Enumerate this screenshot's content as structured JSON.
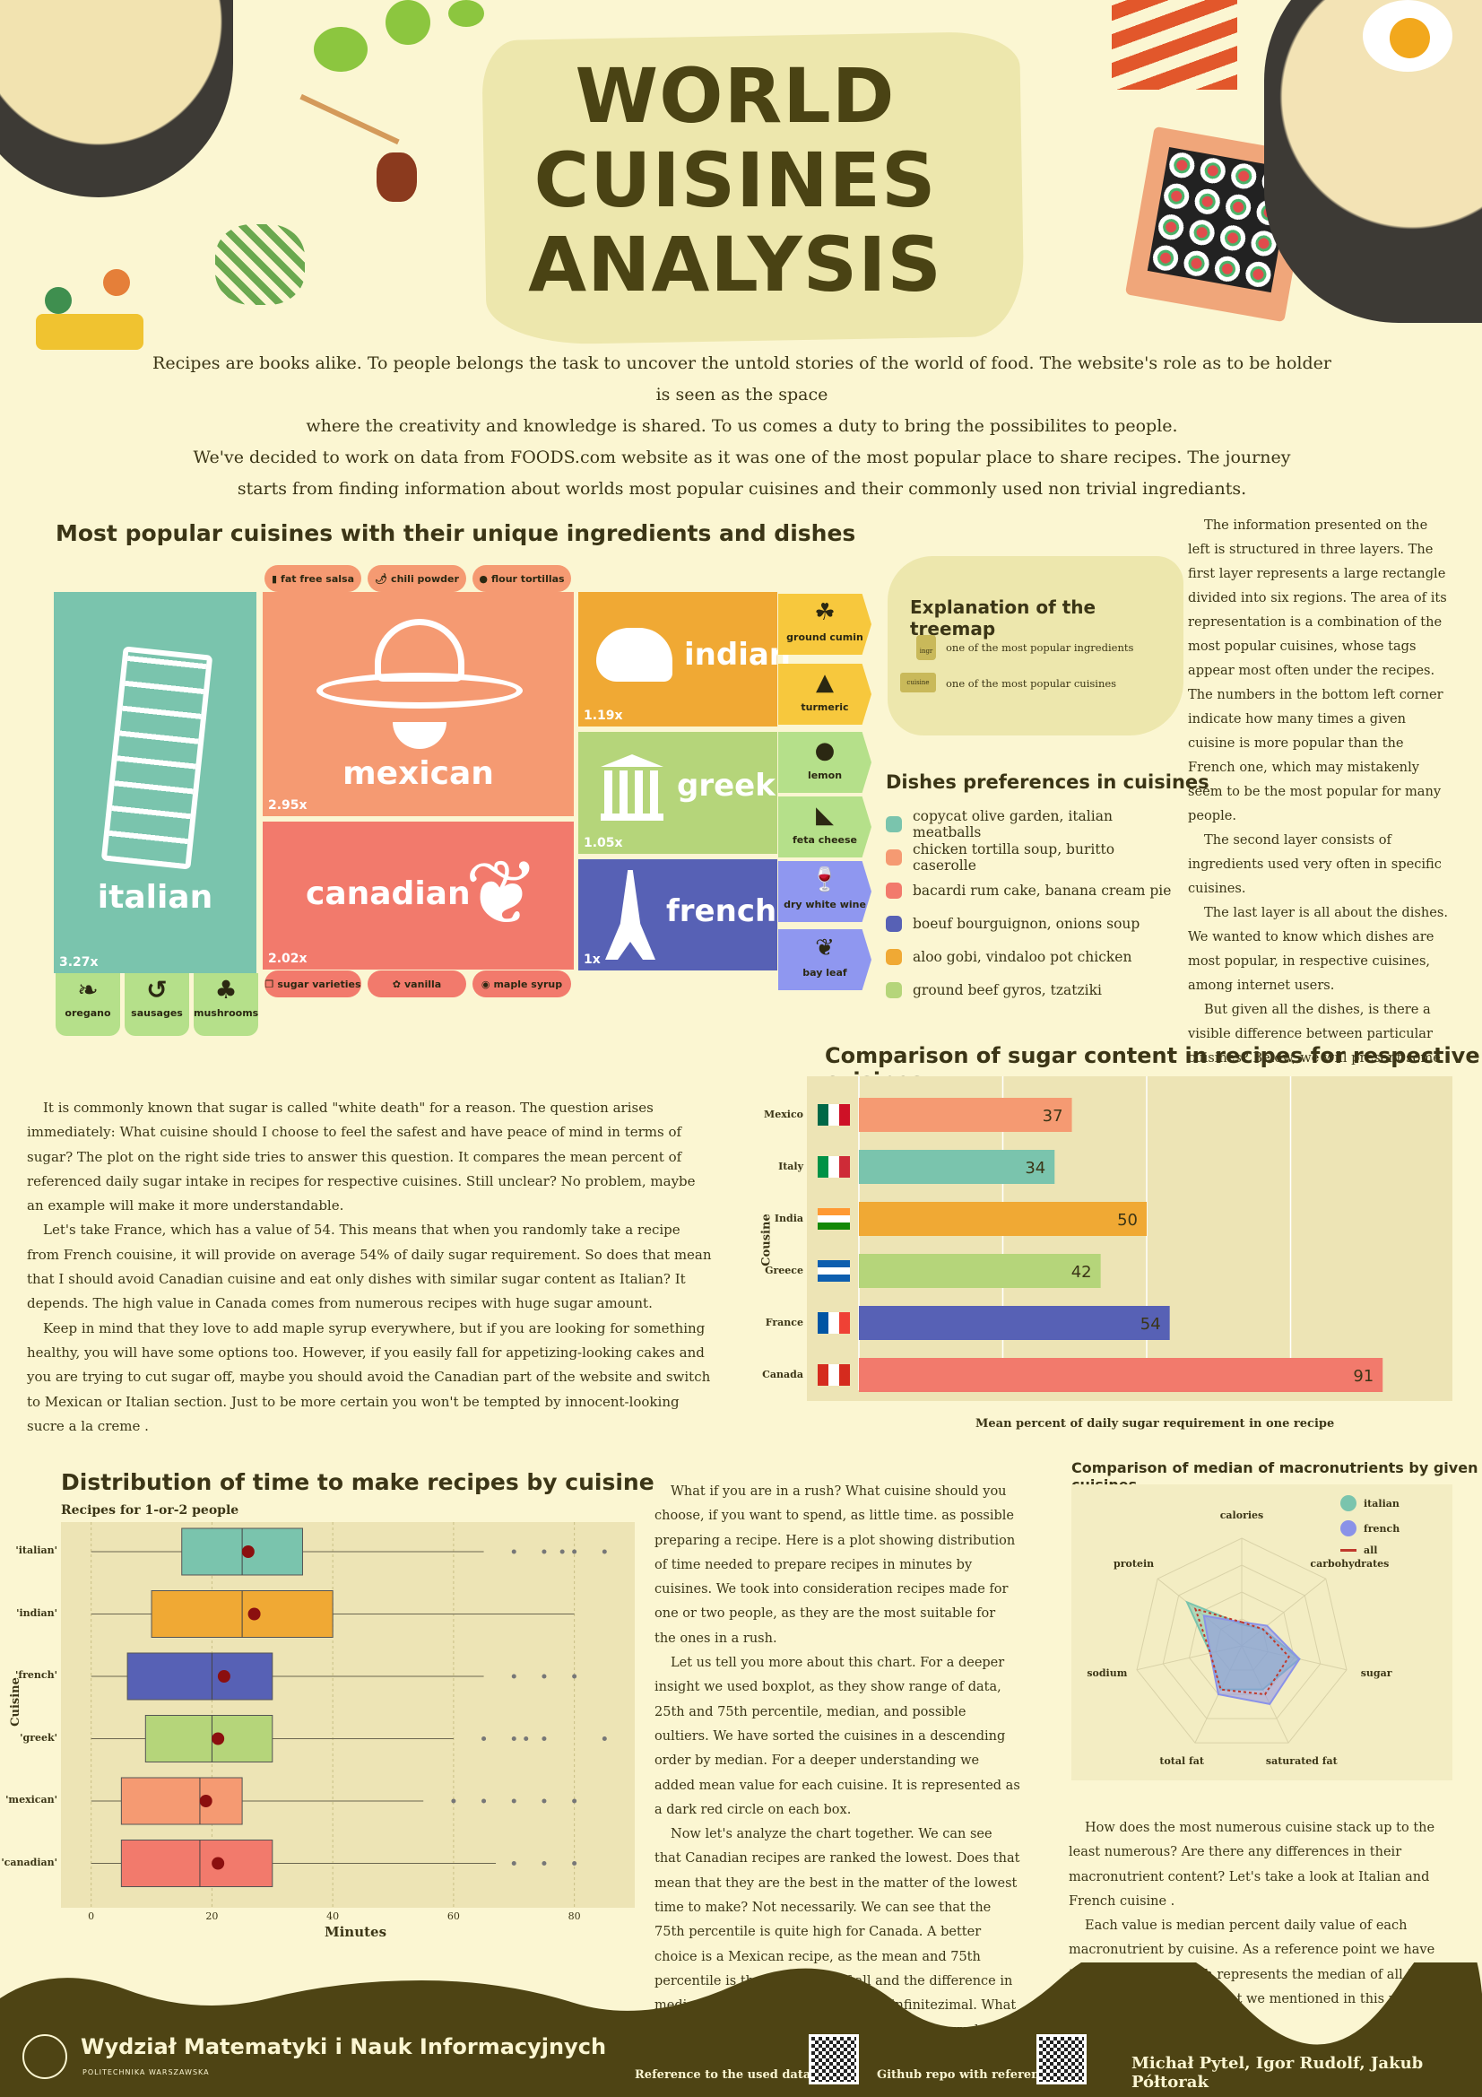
{
  "poster": {
    "title_lines": [
      "WORLD",
      "CUISINES",
      "ANALYSIS"
    ],
    "intro_lines": [
      "Recipes are books alike. To people belongs the task to uncover the untold stories of the world of food. The website's role as to be holder is seen as the space",
      "where the creativity and knowledge is shared. To us comes a duty to bring the possibilites to people.",
      "We've decided to work on data from FOODS.com website as it was one of the most popular place to share recipes. The journey",
      "starts from finding information about worlds most popular cuisines and their commonly used non trivial ingrediants."
    ]
  },
  "treemap": {
    "title": "Most popular cuisines with their unique ingredients and dishes",
    "tiles": [
      {
        "name": "italian",
        "multiplier": "3.27x",
        "color": "#7ac4ad"
      },
      {
        "name": "mexican",
        "multiplier": "2.95x",
        "color": "#f59a72"
      },
      {
        "name": "canadian",
        "multiplier": "2.02x",
        "color": "#f27a6c"
      },
      {
        "name": "indian",
        "multiplier": "1.19x",
        "color": "#f0a934"
      },
      {
        "name": "greek",
        "multiplier": "1.05x",
        "color": "#b5d57a"
      },
      {
        "name": "french",
        "multiplier": "1x",
        "color": "#5761b5"
      }
    ],
    "tags": {
      "italian": [
        "oregano",
        "sausages",
        "mushrooms"
      ],
      "mexican": [
        "fat free salsa",
        "chili powder",
        "flour tortillas"
      ],
      "canadian": [
        "sugar varieties",
        "vanilla",
        "maple syrup"
      ],
      "indian": [
        "ground cumin",
        "turmeric"
      ],
      "greek": [
        "lemon",
        "feta cheese"
      ],
      "french": [
        "dry white wine",
        "bay leaf"
      ]
    },
    "explanation": {
      "title": "Explanation of the treemap",
      "items": [
        "one of the most popular ingredients",
        "one of the most popular cuisines"
      ],
      "icon_labels": [
        "ingr",
        "cuisine"
      ]
    },
    "dishes": {
      "title": "Dishes preferences in cuisines",
      "items": [
        {
          "text": "copycat olive garden,  italian meatballs",
          "color": "#7ac4ad"
        },
        {
          "text": "chicken tortilla soup,  buritto caserolle",
          "color": "#f59a72"
        },
        {
          "text": "bacardi rum cake,  banana cream pie",
          "color": "#f27a6c"
        },
        {
          "text": "boeuf bourguignon, onions soup",
          "color": "#5761b5"
        },
        {
          "text": "aloo gobi,  vindaloo pot chicken",
          "color": "#f0a934"
        },
        {
          "text": "ground beef gyros, tzatziki",
          "color": "#b5d57a"
        }
      ]
    }
  },
  "right_text": [
    "The information presented on the left is structured in three layers. The first layer represents a large rectangle divided into six regions. The area of its representation is a combination of the most popular cuisines, whose tags appear most often under the recipes. The numbers in the bottom left corner indicate how many times a given cuisine is more popular than the French one, which may mistakenly seem to be the most popular for many people.",
    "The second layer consists of ingredients used very often in specific cuisines.",
    "The last layer is all about the dishes. We wanted to know which dishes are most popular,  in respective cuisines, among internet users.",
    "But given all the dishes, is there a visible difference between particular cuisines? Below, we will present some of our insight."
  ],
  "sugar_text": [
    "It is commonly known that sugar is called \"white death\" for a reason. The question arises immediately: What cuisine should I choose to feel the safest and have peace of mind in terms of sugar? The plot on the right side tries to answer this question. It compares the mean percent of referenced daily sugar intake in recipes for respective cuisines. Still unclear? No problem, maybe an example will make it more understandable.",
    "Let's take France,  which has a value of 54. This means that when you randomly take a recipe from French couisine, it will provide on average 54% of daily sugar requirement. So does that mean that I should avoid Canadian cuisine and eat only dishes with similar sugar content as Italian? It depends. The high value in Canada comes from numerous recipes with huge sugar amount.",
    "Keep in mind that they love to add maple syrup everywhere, but if you are looking for something healthy, you will have some options too. However, if you easily fall for appetizing-looking cakes and you are trying to cut sugar off, maybe you should avoid the Canadian part of the website and switch to Mexican or Italian section. Just to be more certain you won't be tempted by innocent-looking sucre a la creme     ."
  ],
  "time_text": [
    "What if you are in a rush? What cuisine should you choose, if you want to spend, as little time. as possible preparing a recipe. Here is a plot showing distribution of time needed to prepare recipes in minutes by cuisines. We took into consideration recipes made for one or two people, as they are the most suitable for the ones in a rush.",
    "Let us tell you more about this chart. For a deeper insight we used boxplot, as they show range of data, 25th and 75th percentile, median, and possible oultiers. We have sorted the cuisines in a descending order by median. For a deeper understanding we added mean value for each cuisine. It is represented as a dark red circle on each box.",
    "Now let's analyze the chart together. We can see that Canadian recipes are ranked the lowest. Does that mean that they are the best  in the matter of the lowest time to make? Not necessarily. We can see that the 75th percentile is quite high for Canada. A better choice is a Mexican recipe, as the mean and 75th percentile is the lowest out of all and the difference in median between it and Canadian is infinitezimal.  What is the worst cuisine to choose, if you are in a rush? The answer to this question is Indian cuisine."
  ],
  "macro_text": [
    "How does the most numerous cuisine stack up to the least numerous? Are there any differences in their macronutrient content? Let's take a look at Italian and French cuisine .",
    "Each value is median percent daily value of each macronutrient by cuisine. As a reference point we have the dotted line, which represents the median of all the values for all cuisines that we mentioned in this poster."
  ],
  "chart_data": [
    {
      "type": "bar",
      "title": "Comparison of sugar content in recipes for respective cuisines",
      "xlabel": "Mean percent of daily sugar requirement in one recipe",
      "ylabel": "Cousine",
      "categories": [
        "Mexico",
        "Italy",
        "India",
        "Greece",
        "France",
        "Canada"
      ],
      "values": [
        37,
        34,
        50,
        42,
        54,
        91
      ],
      "colors": [
        "#f59a72",
        "#7ac4ad",
        "#f0a934",
        "#b5d57a",
        "#5761b5",
        "#f27a6c"
      ],
      "xticks": [
        0,
        25,
        50,
        75
      ],
      "xlim": [
        0,
        100
      ],
      "grid": true,
      "orientation": "horizontal"
    },
    {
      "type": "boxplot",
      "title": "Distribution of time to make recipes by cuisine",
      "subtitle": "Recipes for 1-or-2 people",
      "xlabel": "Minutes",
      "ylabel": "Cuisine",
      "categories": [
        "'italian'",
        "'indian'",
        "'french'",
        "'greek'",
        "'mexican'",
        "'canadian'"
      ],
      "colors": [
        "#7ac4ad",
        "#f0a934",
        "#5761b5",
        "#b5d57a",
        "#f59a72",
        "#f27a6c"
      ],
      "series": [
        {
          "whisker_low": 0,
          "q1": 15,
          "median": 25,
          "q3": 35,
          "whisker_high": 65,
          "mean": 26,
          "outliers": [
            70,
            75,
            78,
            80,
            85
          ]
        },
        {
          "whisker_low": 0,
          "q1": 10,
          "median": 25,
          "q3": 40,
          "whisker_high": 80,
          "mean": 27,
          "outliers": []
        },
        {
          "whisker_low": 0,
          "q1": 6,
          "median": 20,
          "q3": 30,
          "whisker_high": 65,
          "mean": 22,
          "outliers": [
            70,
            75,
            80
          ]
        },
        {
          "whisker_low": 0,
          "q1": 9,
          "median": 20,
          "q3": 30,
          "whisker_high": 60,
          "mean": 21,
          "outliers": [
            65,
            70,
            72,
            75,
            85
          ]
        },
        {
          "whisker_low": 0,
          "q1": 5,
          "median": 18,
          "q3": 25,
          "whisker_high": 55,
          "mean": 19,
          "outliers": [
            60,
            65,
            70,
            75,
            80
          ]
        },
        {
          "whisker_low": 0,
          "q1": 5,
          "median": 18,
          "q3": 30,
          "whisker_high": 67,
          "mean": 21,
          "outliers": [
            70,
            75,
            80
          ]
        }
      ],
      "xticks": [
        0,
        20,
        40,
        60,
        80
      ],
      "xlim": [
        -5,
        90
      ],
      "grid": true
    },
    {
      "type": "radar",
      "title": "Comparison of median of macronutrients by given cuisines",
      "axes": [
        "calories",
        "carbohydrates",
        "sugar",
        "saturated fat",
        "total fat",
        "sodium",
        "protein"
      ],
      "series": [
        {
          "name": "italian",
          "color": "#7ac4ad",
          "values": [
            0.2,
            0.25,
            0.55,
            0.45,
            0.45,
            0.3,
            0.65
          ]
        },
        {
          "name": "french",
          "color": "#8a92e8",
          "values": [
            0.22,
            0.3,
            0.55,
            0.6,
            0.5,
            0.3,
            0.45
          ]
        },
        {
          "name": "all",
          "color": "#c0392b",
          "values": [
            0.22,
            0.25,
            0.45,
            0.5,
            0.45,
            0.3,
            0.55
          ]
        }
      ],
      "legend_position": "top-right"
    }
  ],
  "footer": {
    "faculty": "Wydział Matematyki i Nauk Informacyjnych",
    "university": "POLITECHNIKA WARSZAWSKA",
    "dataset_ref": "Reference to the used dataset:",
    "github_ref": "Github  repo with references:",
    "authors": "Michał Pytel, Igor Rudolf, Jakub  Półtorak"
  }
}
